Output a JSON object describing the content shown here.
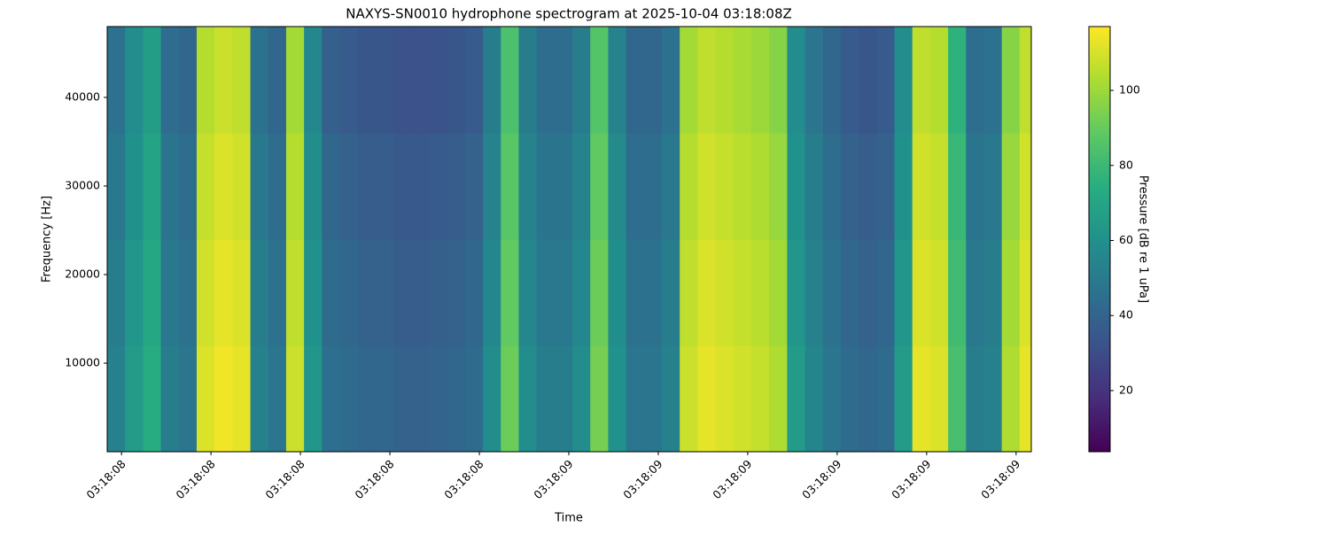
{
  "chart_data": {
    "type": "heatmap",
    "title": "NAXYS-SN0010 hydrophone spectrogram at 2025-10-04 03:18:08Z",
    "x_label": "Time",
    "y_label": "Frequency [Hz]",
    "colorbar_label": "Pressure [dB re 1 uPa]",
    "colormap": "viridis",
    "xlim": [
      8.484,
      9.517
    ],
    "xticks": [
      {
        "value": 8.5,
        "label": "03:18:08"
      },
      {
        "value": 8.6,
        "label": "03:18:08"
      },
      {
        "value": 8.7,
        "label": "03:18:08"
      },
      {
        "value": 8.8,
        "label": "03:18:08"
      },
      {
        "value": 8.9,
        "label": "03:18:08"
      },
      {
        "value": 9.0,
        "label": "03:18:09"
      },
      {
        "value": 9.1,
        "label": "03:18:09"
      },
      {
        "value": 9.2,
        "label": "03:18:09"
      },
      {
        "value": 9.3,
        "label": "03:18:09"
      },
      {
        "value": 9.4,
        "label": "03:18:09"
      },
      {
        "value": 9.5,
        "label": "03:18:09"
      }
    ],
    "ylim": [
      0,
      48000
    ],
    "yticks": [
      10000,
      20000,
      30000,
      40000
    ],
    "clim": [
      3.7,
      117
    ],
    "cticks": [
      20,
      40,
      60,
      80,
      100
    ],
    "x": [
      8.494,
      8.514,
      8.534,
      8.554,
      8.574,
      8.594,
      8.614,
      8.634,
      8.654,
      8.674,
      8.694,
      8.714,
      8.734,
      8.754,
      8.774,
      8.794,
      8.814,
      8.834,
      8.854,
      8.874,
      8.894,
      8.914,
      8.934,
      8.954,
      8.974,
      8.994,
      9.014,
      9.034,
      9.054,
      9.074,
      9.094,
      9.114,
      9.134,
      9.154,
      9.174,
      9.194,
      9.214,
      9.234,
      9.254,
      9.274,
      9.294,
      9.314,
      9.334,
      9.354,
      9.374,
      9.394,
      9.414,
      9.434,
      9.454,
      9.474,
      9.494,
      9.514
    ],
    "y": [
      6000,
      18000,
      30000,
      42000
    ],
    "z": [
      [
        53,
        65,
        73,
        51,
        48,
        111,
        115,
        113,
        53,
        48,
        108,
        63,
        45,
        43,
        41,
        41,
        39,
        39,
        40,
        41,
        43,
        58,
        91,
        58,
        51,
        51,
        58,
        93,
        61,
        48,
        48,
        53,
        108,
        113,
        111,
        109,
        107,
        103,
        65,
        55,
        48,
        43,
        41,
        43,
        65,
        113,
        111,
        83,
        51,
        53,
        103,
        113
      ],
      [
        51,
        63,
        71,
        49,
        46,
        109,
        113,
        111,
        51,
        46,
        106,
        61,
        43,
        41,
        39,
        39,
        37,
        37,
        38,
        39,
        41,
        56,
        89,
        56,
        49,
        49,
        56,
        91,
        59,
        46,
        46,
        51,
        106,
        111,
        109,
        107,
        105,
        101,
        63,
        53,
        46,
        41,
        39,
        41,
        63,
        111,
        109,
        81,
        49,
        51,
        101,
        111
      ],
      [
        49,
        61,
        69,
        47,
        44,
        107,
        111,
        109,
        49,
        44,
        104,
        59,
        41,
        39,
        37,
        37,
        35,
        35,
        36,
        37,
        39,
        54,
        87,
        54,
        47,
        47,
        54,
        89,
        57,
        44,
        44,
        49,
        104,
        109,
        107,
        105,
        103,
        99,
        61,
        51,
        44,
        39,
        37,
        39,
        61,
        109,
        107,
        79,
        47,
        49,
        99,
        109
      ],
      [
        46,
        58,
        66,
        44,
        41,
        104,
        108,
        106,
        46,
        41,
        101,
        56,
        38,
        36,
        34,
        34,
        32,
        32,
        33,
        34,
        36,
        51,
        84,
        51,
        44,
        44,
        51,
        86,
        54,
        41,
        41,
        46,
        101,
        106,
        104,
        102,
        100,
        96,
        58,
        48,
        41,
        36,
        34,
        36,
        58,
        106,
        104,
        76,
        44,
        46,
        96,
        106
      ]
    ]
  }
}
